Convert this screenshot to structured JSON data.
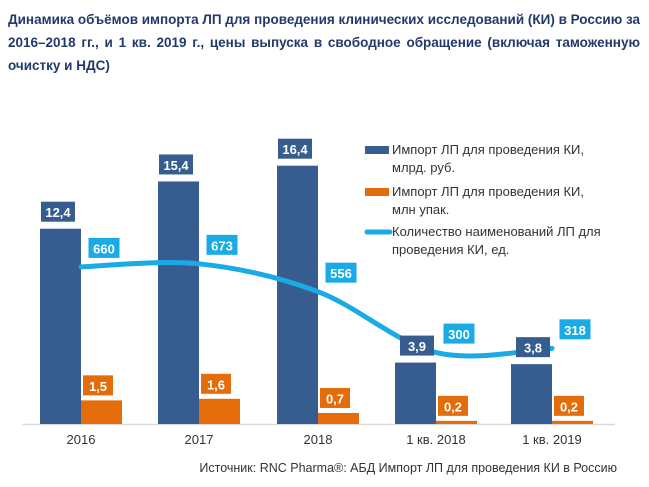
{
  "title": "Динамика объёмов импорта ЛП для проведения клинических исследований (КИ) в Россию за 2016–2018 гг., и 1 кв. 2019 г., цены выпуска в свободное обращение (включая таможенную очистку и НДС)",
  "source": "Источник: RNC Pharma®: АБД Импорт ЛП для проведения КИ в Россию",
  "chart_data": {
    "type": "bar",
    "categories": [
      "2016",
      "2017",
      "2018",
      "1 кв. 2018",
      "1 кв. 2019"
    ],
    "series": [
      {
        "name": "Импорт ЛП для проведения КИ, млрд. руб.",
        "legend_lines": [
          "Импорт ЛП для проведения КИ,",
          "млрд. руб."
        ],
        "type": "bar",
        "color": "#375c8f",
        "values": [
          12.4,
          15.4,
          16.4,
          3.9,
          3.8
        ],
        "labels": [
          "12,4",
          "15,4",
          "16,4",
          "3,9",
          "3,8"
        ]
      },
      {
        "name": "Импорт ЛП для проведения КИ, млн упак.",
        "legend_lines": [
          "Импорт ЛП для проведения КИ,",
          "млн упак."
        ],
        "type": "bar",
        "color": "#e46c0a",
        "values": [
          1.5,
          1.6,
          0.7,
          0.2,
          0.2
        ],
        "labels": [
          "1,5",
          "1,6",
          "0,7",
          "0,2",
          "0,2"
        ]
      },
      {
        "name": "Количество наименований ЛП для проведения КИ, ед.",
        "legend_lines": [
          "Количество наименований ЛП для",
          "проведения КИ, ед."
        ],
        "type": "line",
        "color": "#1aaae6",
        "values": [
          660,
          673,
          556,
          300,
          318
        ],
        "labels": [
          "660",
          "673",
          "556",
          "300",
          "318"
        ]
      }
    ],
    "legend_position": "top-right",
    "grid": false
  }
}
